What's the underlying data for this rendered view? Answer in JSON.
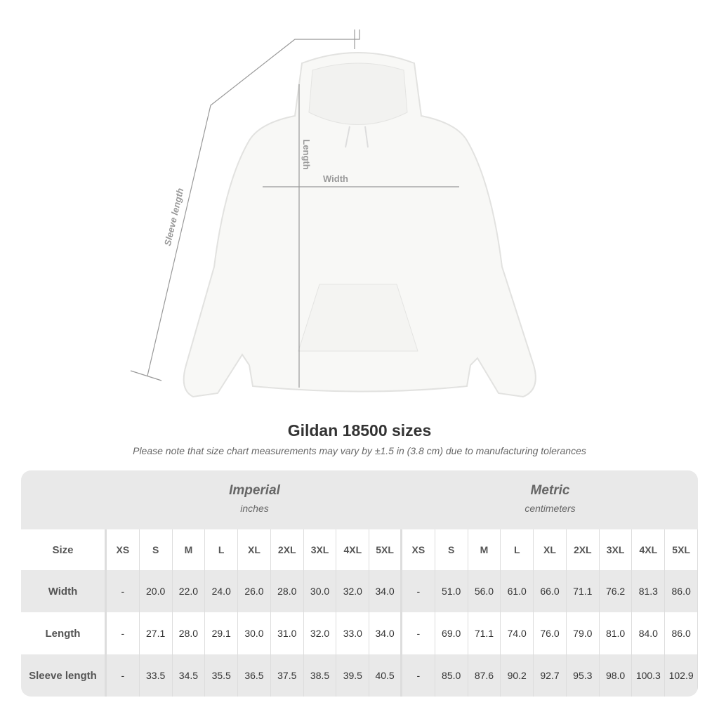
{
  "illustration": {
    "labels": {
      "length": "Length",
      "width": "Width",
      "sleeve": "Sleeve length"
    }
  },
  "title": "Gildan 18500 sizes",
  "note": "Please note that size chart measurements may vary by ±1.5 in (3.8 cm) due to manufacturing tolerances",
  "groups": {
    "imperial": {
      "label": "Imperial",
      "unit": "inches"
    },
    "metric": {
      "label": "Metric",
      "unit": "centimeters"
    }
  },
  "header": {
    "label": "Size",
    "imperial": [
      "XS",
      "S",
      "M",
      "L",
      "XL",
      "2XL",
      "3XL",
      "4XL",
      "5XL"
    ],
    "metric": [
      "XS",
      "S",
      "M",
      "L",
      "XL",
      "2XL",
      "3XL",
      "4XL",
      "5XL"
    ]
  },
  "rows": [
    {
      "label": "Width",
      "imperial": [
        "-",
        "20.0",
        "22.0",
        "24.0",
        "26.0",
        "28.0",
        "30.0",
        "32.0",
        "34.0"
      ],
      "metric": [
        "-",
        "51.0",
        "56.0",
        "61.0",
        "66.0",
        "71.1",
        "76.2",
        "81.3",
        "86.0"
      ]
    },
    {
      "label": "Length",
      "imperial": [
        "-",
        "27.1",
        "28.0",
        "29.1",
        "30.0",
        "31.0",
        "32.0",
        "33.0",
        "34.0"
      ],
      "metric": [
        "-",
        "69.0",
        "71.1",
        "74.0",
        "76.0",
        "79.0",
        "81.0",
        "84.0",
        "86.0"
      ]
    },
    {
      "label": "Sleeve length",
      "imperial": [
        "-",
        "33.5",
        "34.5",
        "35.5",
        "36.5",
        "37.5",
        "38.5",
        "39.5",
        "40.5"
      ],
      "metric": [
        "-",
        "85.0",
        "87.6",
        "90.2",
        "92.7",
        "95.3",
        "98.0",
        "100.3",
        "102.9"
      ]
    }
  ]
}
